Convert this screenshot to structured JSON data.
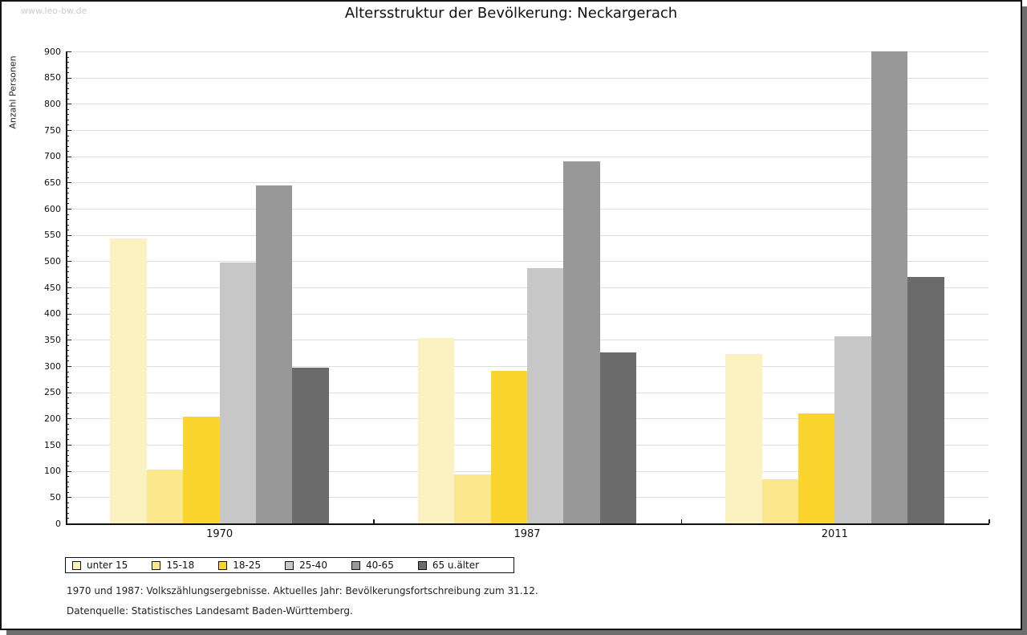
{
  "watermark": "www.leo-bw.de",
  "title": "Altersstruktur der Bevölkerung: Neckargerach",
  "chart_data": {
    "type": "bar",
    "title": "Altersstruktur der Bevölkerung: Neckargerach",
    "xlabel": "",
    "ylabel": "Anzahl Personen",
    "ylim": [
      0,
      900
    ],
    "ytick_step": 50,
    "minor_tick_step": 10,
    "grid": true,
    "legend_position": "bottom-left",
    "categories": [
      "1970",
      "1987",
      "2011"
    ],
    "series": [
      {
        "name": "unter 15",
        "color": "#FAF2C0",
        "values": [
          543,
          354,
          323
        ]
      },
      {
        "name": "15-18",
        "color": "#FCE88C",
        "values": [
          103,
          93,
          84
        ]
      },
      {
        "name": "18-25",
        "color": "#FBD42D",
        "values": [
          204,
          291,
          210
        ]
      },
      {
        "name": "25-40",
        "color": "#C7C7C7",
        "values": [
          498,
          486,
          357
        ]
      },
      {
        "name": "40-65",
        "color": "#989898",
        "values": [
          645,
          690,
          900
        ]
      },
      {
        "name": "65 u.älter",
        "color": "#6B6B6B",
        "values": [
          297,
          326,
          470
        ]
      }
    ]
  },
  "footnotes": [
    "1970 und 1987: Volkszählungsergebnisse. Aktuelles Jahr: Bevölkerungsfortschreibung zum 31.12.",
    "Datenquelle: Statistisches Landesamt Baden-Württemberg."
  ],
  "colors": {
    "frame": "#141414",
    "shadow": "#6E6E6E",
    "grid": "#DEDEDE",
    "axis": "#111111",
    "watermark": "#CBCBCB"
  }
}
